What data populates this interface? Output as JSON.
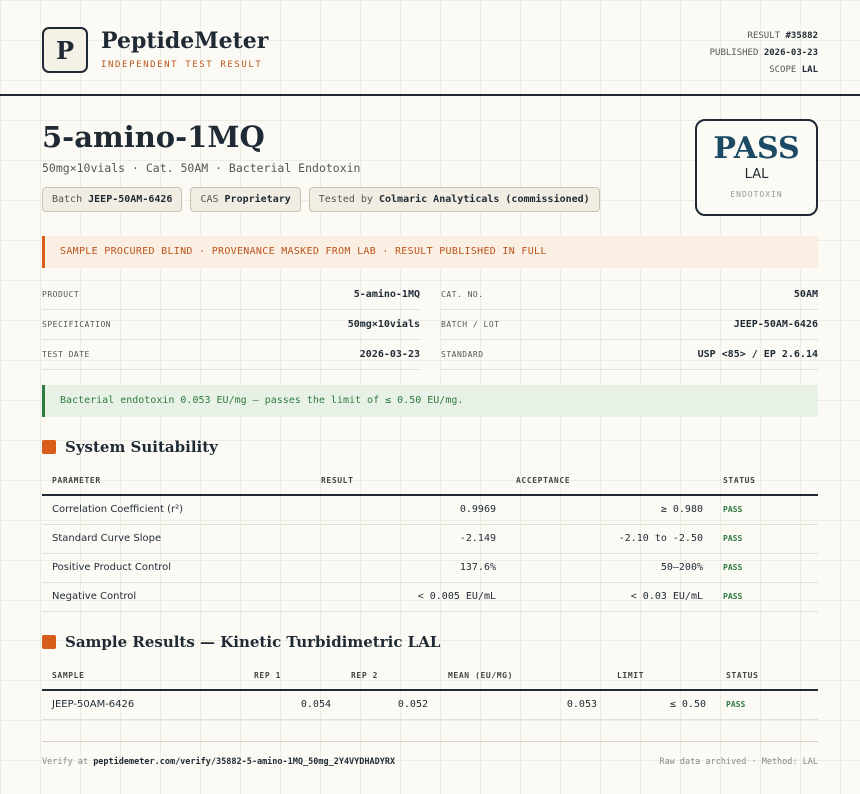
{
  "header": {
    "logo_letter": "P",
    "brand": "PeptideMeter",
    "tagline": "INDEPENDENT TEST RESULT",
    "meta": [
      {
        "label": "RESULT",
        "value": "#35882"
      },
      {
        "label": "PUBLISHED",
        "value": "2026-03-23"
      },
      {
        "label": "SCOPE",
        "value": "LAL"
      }
    ]
  },
  "product": {
    "name": "5-amino-1MQ",
    "subtitle": "50mg×10vials · Cat. 50AM · Bacterial Endotoxin",
    "chips": [
      {
        "label": "Batch",
        "value": "JEEP-50AM-6426"
      },
      {
        "label": "CAS",
        "value": "Proprietary"
      },
      {
        "label": "Tested by",
        "value": "Colmaric Analyticals (commissioned)"
      }
    ]
  },
  "verdict": {
    "result": "PASS",
    "scope": "LAL",
    "category": "ENDOTOXIN"
  },
  "notice": "SAMPLE PROCURED BLIND · PROVENANCE MASKED FROM LAB · RESULT PUBLISHED IN FULL",
  "details": [
    {
      "label": "PRODUCT",
      "value": "5-amino-1MQ"
    },
    {
      "label": "CAT. NO.",
      "value": "50AM"
    },
    {
      "label": "SPECIFICATION",
      "value": "50mg×10vials"
    },
    {
      "label": "BATCH / LOT",
      "value": "JEEP-50AM-6426"
    },
    {
      "label": "TEST DATE",
      "value": "2026-03-23"
    },
    {
      "label": "STANDARD",
      "value": "USP <85> / EP 2.6.14"
    }
  ],
  "summary": "Bacterial endotoxin 0.053 EU/mg — passes the limit of ≤ 0.50 EU/mg.",
  "suitability": {
    "title": "System Suitability",
    "columns": [
      "PARAMETER",
      "RESULT",
      "ACCEPTANCE",
      "STATUS"
    ],
    "rows": [
      [
        "Correlation Coefficient (r²)",
        "0.9969",
        "≥ 0.980",
        "PASS"
      ],
      [
        "Standard Curve Slope",
        "-2.149",
        "-2.10 to -2.50",
        "PASS"
      ],
      [
        "Positive Product Control",
        "137.6%",
        "50–200%",
        "PASS"
      ],
      [
        "Negative Control",
        "< 0.005 EU/mL",
        "< 0.03 EU/mL",
        "PASS"
      ]
    ]
  },
  "samples": {
    "title": "Sample Results — Kinetic Turbidimetric LAL",
    "columns": [
      "SAMPLE",
      "REP 1",
      "REP 2",
      "MEAN (EU/MG)",
      "LIMIT",
      "STATUS"
    ],
    "rows": [
      [
        "JEEP-50AM-6426",
        "0.054",
        "0.052",
        "0.053",
        "≤ 0.50",
        "PASS"
      ]
    ]
  },
  "footer": {
    "verify_label": "Verify at",
    "verify_url": "peptidemeter.com/verify/35882-5-amino-1MQ_50mg_2Y4VYDHADYRX",
    "note": "Raw data archived · Method: LAL"
  }
}
